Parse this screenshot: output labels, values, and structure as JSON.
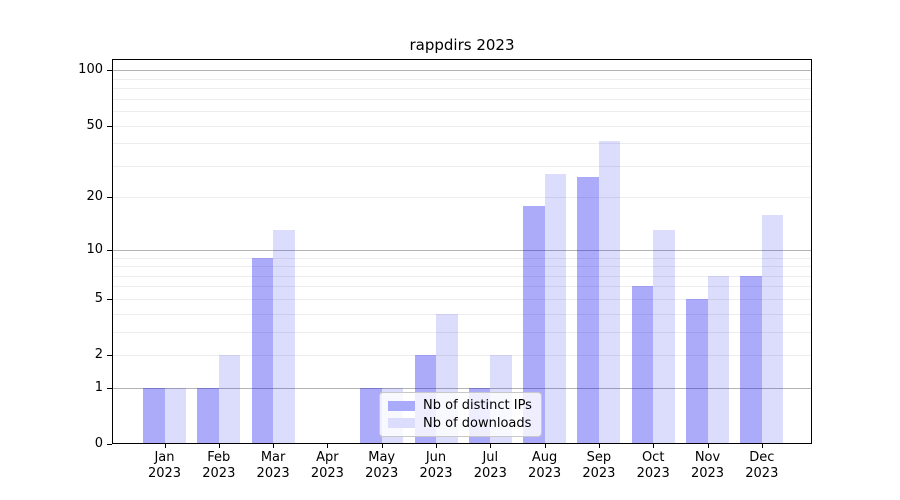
{
  "figure": {
    "title": "rappdirs 2023"
  },
  "chart_data": {
    "type": "bar",
    "title": "rappdirs 2023",
    "categories": [
      "Jan 2023",
      "Feb 2023",
      "Mar 2023",
      "Apr 2023",
      "May 2023",
      "Jun 2023",
      "Jul 2023",
      "Aug 2023",
      "Sep 2023",
      "Oct 2023",
      "Nov 2023",
      "Dec 2023"
    ],
    "series": [
      {
        "name": "Nb of distinct IPs",
        "color": "#aaaafb",
        "fill": "rgba(13,13,242,0.35)",
        "values": [
          1,
          1,
          9,
          0,
          1,
          2,
          1,
          18,
          26,
          6,
          5,
          7
        ]
      },
      {
        "name": "Nb of downloads",
        "color": "#dcdcfd",
        "fill": "rgba(13,13,242,0.145)",
        "values": [
          1,
          2,
          13,
          0,
          1,
          4,
          2,
          27,
          41,
          13,
          7,
          16
        ]
      }
    ],
    "xlabel": "",
    "ylabel": "",
    "y_scale": "log1p (y position proportional to log10(1+value))",
    "y_tick_values": [
      100,
      50,
      20,
      10,
      5,
      2,
      1,
      0
    ],
    "y_major_gridlines": [
      1,
      10,
      100
    ],
    "y_minor_gridlines": [
      2,
      3,
      4,
      5,
      6,
      7,
      8,
      9,
      20,
      30,
      40,
      50,
      60,
      70,
      80,
      90
    ],
    "ylim": [
      0,
      115
    ],
    "grid": true,
    "legend_position": "lower center"
  },
  "legend": {
    "items": [
      {
        "label": "Nb of distinct IPs",
        "color": "#aaaafb"
      },
      {
        "label": "Nb of downloads",
        "color": "#dcdcfd"
      }
    ]
  },
  "colors": {
    "background": "#ffffff",
    "axis": "#000000",
    "major_grid": "#b3b3b3",
    "minor_grid": "#ededed",
    "legend_border": "#c8c8c8"
  }
}
